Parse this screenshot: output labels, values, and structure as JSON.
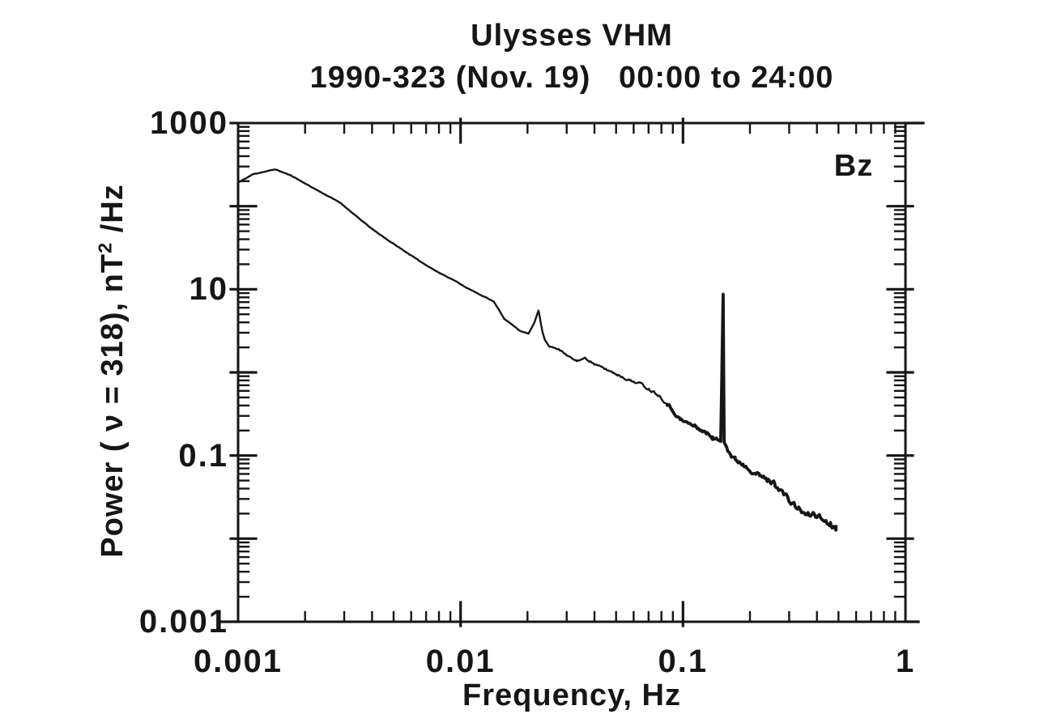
{
  "chart_data": {
    "type": "line",
    "title": "Ulysses VHM",
    "subtitle": "1990-323 (Nov. 19)   00:00 to 24:00",
    "xlabel": "Frequency, Hz",
    "ylabel": "Power ( ν = 318), nT² /Hz",
    "ylabel_parts": {
      "pre": "Power ( ",
      "nu": "ν",
      "mid": " = 318),  nT",
      "sup": "2",
      "post": " /Hz"
    },
    "x_scale": "log",
    "y_scale": "log",
    "xlim": [
      0.001,
      1
    ],
    "ylim": [
      0.001,
      1000
    ],
    "grid": false,
    "x_ticks": [
      {
        "value": 0.001,
        "label": "0.001"
      },
      {
        "value": 0.01,
        "label": "0.01"
      },
      {
        "value": 0.1,
        "label": "0.1"
      },
      {
        "value": 1,
        "label": "1"
      }
    ],
    "y_ticks": [
      {
        "value": 1000,
        "label": "1000"
      },
      {
        "value": 10,
        "label": "10"
      },
      {
        "value": 0.1,
        "label": "0.1"
      },
      {
        "value": 0.001,
        "label": "0.001"
      }
    ],
    "ink_color": "#161616",
    "background_color": "#ffffff",
    "series": [
      {
        "name": "Bz",
        "points": [
          [
            0.001,
            192
          ],
          [
            0.00117,
            243
          ],
          [
            0.00147,
            277
          ],
          [
            0.00174,
            232
          ],
          [
            0.00205,
            181
          ],
          [
            0.00239,
            144
          ],
          [
            0.00288,
            110
          ],
          [
            0.0034,
            75.6
          ],
          [
            0.00402,
            52.7
          ],
          [
            0.00475,
            38.5
          ],
          [
            0.00561,
            28.7
          ],
          [
            0.00663,
            21.4
          ],
          [
            0.00784,
            16.3
          ],
          [
            0.00927,
            13.0
          ],
          [
            0.01096,
            10.0
          ],
          [
            0.01296,
            8.0
          ],
          [
            0.0141,
            7.1
          ],
          [
            0.0157,
            4.45
          ],
          [
            0.0185,
            3.17
          ],
          [
            0.0202,
            2.92
          ],
          [
            0.0215,
            4.0
          ],
          [
            0.0224,
            5.6
          ],
          [
            0.0234,
            3.0
          ],
          [
            0.024,
            2.44
          ],
          [
            0.025,
            2.04
          ],
          [
            0.0276,
            1.91
          ],
          [
            0.0303,
            1.57
          ],
          [
            0.0332,
            1.38
          ],
          [
            0.0365,
            1.48
          ],
          [
            0.0401,
            1.25
          ],
          [
            0.044,
            1.12
          ],
          [
            0.0484,
            1.0
          ],
          [
            0.0531,
            0.89
          ],
          [
            0.0583,
            0.79
          ],
          [
            0.0641,
            0.74
          ],
          [
            0.0704,
            0.63
          ],
          [
            0.0773,
            0.54
          ],
          [
            0.085,
            0.42
          ],
          [
            0.0972,
            0.27
          ],
          [
            0.1149,
            0.22
          ],
          [
            0.1359,
            0.166
          ],
          [
            0.1478,
            0.148
          ],
          [
            0.1515,
            8.7
          ],
          [
            0.1531,
            0.144
          ],
          [
            0.1648,
            0.099
          ],
          [
            0.1714,
            0.09
          ],
          [
            0.1861,
            0.079
          ],
          [
            0.2021,
            0.067
          ],
          [
            0.2194,
            0.058
          ],
          [
            0.2383,
            0.051
          ],
          [
            0.2588,
            0.046
          ],
          [
            0.281,
            0.036
          ],
          [
            0.3051,
            0.027
          ],
          [
            0.3313,
            0.023
          ],
          [
            0.3597,
            0.019
          ],
          [
            0.3906,
            0.02
          ],
          [
            0.4241,
            0.017
          ],
          [
            0.4605,
            0.015
          ],
          [
            0.4872,
            0.014
          ]
        ]
      }
    ],
    "annotations": [
      {
        "name": "spike",
        "f": 0.1515,
        "peak_power": 8.7
      },
      {
        "name": "bump",
        "f": 0.0224,
        "peak_power": 5.6
      }
    ]
  }
}
